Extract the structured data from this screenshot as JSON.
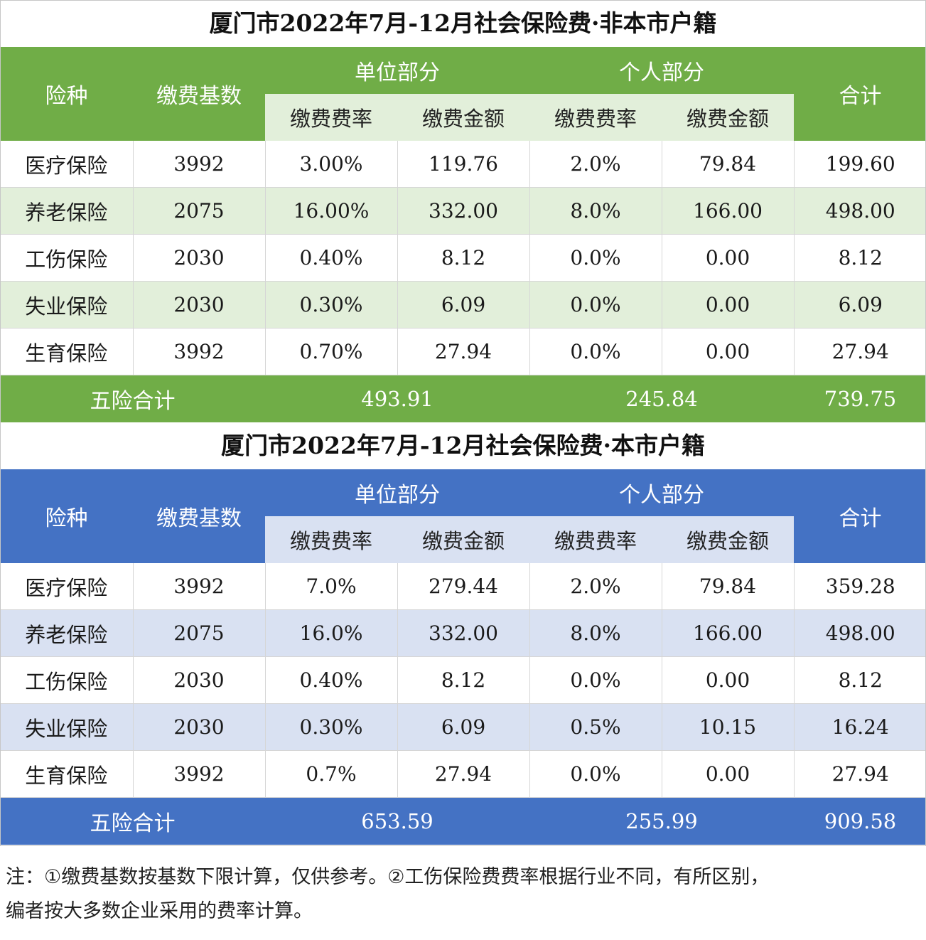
{
  "tables": [
    {
      "title": "厦门市2022年7月-12月社会保险费·非本市户籍",
      "headers": {
        "type": "险种",
        "base": "缴费基数",
        "unit": "单位部分",
        "personal": "个人部分",
        "total": "合计",
        "rate": "缴费费率",
        "amount": "缴费金额"
      },
      "rows": [
        {
          "name": "医疗保险",
          "base": "3992",
          "unit_rate": "3.00%",
          "unit_amount": "119.76",
          "personal_rate": "2.0%",
          "personal_amount": "79.84",
          "total": "199.60"
        },
        {
          "name": "养老保险",
          "base": "2075",
          "unit_rate": "16.00%",
          "unit_amount": "332.00",
          "personal_rate": "8.0%",
          "personal_amount": "166.00",
          "total": "498.00"
        },
        {
          "name": "工伤保险",
          "base": "2030",
          "unit_rate": "0.40%",
          "unit_amount": "8.12",
          "personal_rate": "0.0%",
          "personal_amount": "0.00",
          "total": "8.12"
        },
        {
          "name": "失业保险",
          "base": "2030",
          "unit_rate": "0.30%",
          "unit_amount": "6.09",
          "personal_rate": "0.0%",
          "personal_amount": "0.00",
          "total": "6.09"
        },
        {
          "name": "生育保险",
          "base": "3992",
          "unit_rate": "0.70%",
          "unit_amount": "27.94",
          "personal_rate": "0.0%",
          "personal_amount": "0.00",
          "total": "27.94"
        }
      ],
      "footer": {
        "label": "五险合计",
        "unit_total": "493.91",
        "personal_total": "245.84",
        "grand_total": "739.75"
      },
      "theme_color": "#70ad47",
      "alt_color": "#e2efda"
    },
    {
      "title": "厦门市2022年7月-12月社会保险费·本市户籍",
      "headers": {
        "type": "险种",
        "base": "缴费基数",
        "unit": "单位部分",
        "personal": "个人部分",
        "total": "合计",
        "rate": "缴费费率",
        "amount": "缴费金额"
      },
      "rows": [
        {
          "name": "医疗保险",
          "base": "3992",
          "unit_rate": "7.0%",
          "unit_amount": "279.44",
          "personal_rate": "2.0%",
          "personal_amount": "79.84",
          "total": "359.28"
        },
        {
          "name": "养老保险",
          "base": "2075",
          "unit_rate": "16.0%",
          "unit_amount": "332.00",
          "personal_rate": "8.0%",
          "personal_amount": "166.00",
          "total": "498.00"
        },
        {
          "name": "工伤保险",
          "base": "2030",
          "unit_rate": "0.40%",
          "unit_amount": "8.12",
          "personal_rate": "0.0%",
          "personal_amount": "0.00",
          "total": "8.12"
        },
        {
          "name": "失业保险",
          "base": "2030",
          "unit_rate": "0.30%",
          "unit_amount": "6.09",
          "personal_rate": "0.5%",
          "personal_amount": "10.15",
          "total": "16.24"
        },
        {
          "name": "生育保险",
          "base": "3992",
          "unit_rate": "0.7%",
          "unit_amount": "27.94",
          "personal_rate": "0.0%",
          "personal_amount": "0.00",
          "total": "27.94"
        }
      ],
      "footer": {
        "label": "五险合计",
        "unit_total": "653.59",
        "personal_total": "255.99",
        "grand_total": "909.58"
      },
      "theme_color": "#4472c4",
      "alt_color": "#d9e1f2"
    }
  ],
  "note": {
    "line1": "注：①缴费基数按基数下限计算，仅供参考。②工伤保险费费率根据行业不同，有所区别，",
    "line2": "编者按大多数企业采用的费率计算。"
  }
}
